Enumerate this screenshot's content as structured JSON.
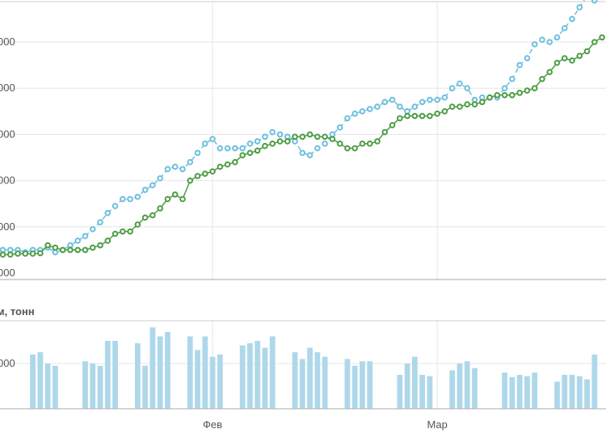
{
  "chart_data": [
    {
      "type": "line",
      "title": "",
      "xlabel": "",
      "ylabel": "",
      "x": [
        1,
        2,
        3,
        4,
        5,
        6,
        7,
        8,
        9,
        10,
        11,
        12,
        13,
        14,
        15,
        16,
        17,
        18,
        19,
        20,
        21,
        22,
        23,
        24,
        25,
        26,
        27,
        28,
        29,
        30,
        31,
        32,
        33,
        34,
        35,
        36,
        37,
        38,
        39,
        40,
        41,
        42,
        43,
        44,
        45,
        46,
        47,
        48,
        49,
        50,
        51,
        52,
        53,
        54,
        55,
        56,
        57,
        58,
        59,
        60,
        61,
        62,
        63,
        64,
        65,
        66,
        67,
        68,
        69,
        70,
        71,
        72,
        73,
        74,
        75,
        76,
        77,
        78,
        79,
        80,
        81
      ],
      "x_ticks": [
        {
          "x": 29,
          "label": "Фев"
        },
        {
          "x": 59,
          "label": "Мар"
        }
      ],
      "y_tick_labels": [
        "000",
        "000",
        "000",
        "000",
        "000",
        "000"
      ],
      "ylim": [
        0,
        6
      ],
      "y_ticks": [
        0,
        1,
        2,
        3,
        4,
        5
      ],
      "grid": true,
      "series": [
        {
          "color": "#6cbfe0",
          "style": "dashed",
          "values": [
            0.5,
            0.5,
            0.5,
            0.45,
            0.5,
            0.5,
            0.55,
            0.45,
            0.5,
            0.6,
            0.7,
            0.8,
            0.95,
            1.1,
            1.3,
            1.45,
            1.6,
            1.6,
            1.65,
            1.8,
            1.9,
            2.05,
            2.25,
            2.3,
            2.25,
            2.4,
            2.6,
            2.8,
            2.9,
            2.7,
            2.7,
            2.7,
            2.7,
            2.8,
            2.85,
            2.95,
            3.05,
            3.0,
            2.95,
            2.85,
            2.6,
            2.55,
            2.7,
            2.8,
            3.0,
            3.15,
            3.35,
            3.45,
            3.5,
            3.55,
            3.6,
            3.7,
            3.75,
            3.6,
            3.5,
            3.6,
            3.7,
            3.75,
            3.75,
            3.8,
            4.0,
            4.1,
            4.0,
            3.75,
            3.8,
            3.8,
            3.8,
            4.0,
            4.2,
            4.5,
            4.65,
            4.95,
            5.05,
            5.0,
            5.1,
            5.3,
            5.5,
            5.75,
            6.0,
            5.9,
            6.0
          ]
        },
        {
          "color": "#4c9c43",
          "style": "solid",
          "values": [
            0.4,
            0.4,
            0.42,
            0.42,
            0.42,
            0.43,
            0.6,
            0.55,
            0.5,
            0.5,
            0.5,
            0.5,
            0.55,
            0.6,
            0.7,
            0.85,
            0.9,
            0.9,
            1.05,
            1.2,
            1.25,
            1.4,
            1.6,
            1.7,
            1.6,
            2.0,
            2.1,
            2.15,
            2.2,
            2.3,
            2.35,
            2.4,
            2.55,
            2.6,
            2.65,
            2.75,
            2.8,
            2.85,
            2.85,
            2.95,
            2.95,
            3.0,
            2.95,
            2.95,
            2.9,
            2.8,
            2.7,
            2.7,
            2.8,
            2.8,
            2.85,
            3.05,
            3.2,
            3.35,
            3.4,
            3.4,
            3.4,
            3.4,
            3.45,
            3.5,
            3.6,
            3.6,
            3.65,
            3.65,
            3.7,
            3.8,
            3.85,
            3.85,
            3.85,
            3.9,
            3.95,
            4.0,
            4.2,
            4.35,
            4.55,
            4.65,
            4.6,
            4.7,
            4.8,
            5.0,
            5.1
          ]
        }
      ]
    },
    {
      "type": "bar",
      "title": "м, тонн",
      "y_tick_labels": [
        "000"
      ],
      "ylim": [
        0,
        2
      ],
      "x_ticks": [
        {
          "x": 29,
          "label": "Фев"
        },
        {
          "x": 59,
          "label": "Мар"
        }
      ],
      "color": "#aed8ea",
      "bars": [
        {
          "x": 5,
          "value": 1.2
        },
        {
          "x": 6,
          "value": 1.25
        },
        {
          "x": 7,
          "value": 1.0
        },
        {
          "x": 8,
          "value": 0.95
        },
        {
          "x": 12,
          "value": 1.05
        },
        {
          "x": 13,
          "value": 1.0
        },
        {
          "x": 14,
          "value": 0.95
        },
        {
          "x": 15,
          "value": 1.5
        },
        {
          "x": 16,
          "value": 1.5
        },
        {
          "x": 19,
          "value": 1.45
        },
        {
          "x": 20,
          "value": 0.95
        },
        {
          "x": 21,
          "value": 1.8
        },
        {
          "x": 22,
          "value": 1.6
        },
        {
          "x": 23,
          "value": 1.7
        },
        {
          "x": 26,
          "value": 1.6
        },
        {
          "x": 27,
          "value": 1.3
        },
        {
          "x": 28,
          "value": 1.6
        },
        {
          "x": 29,
          "value": 1.15
        },
        {
          "x": 30,
          "value": 1.2
        },
        {
          "x": 33,
          "value": 1.4
        },
        {
          "x": 34,
          "value": 1.45
        },
        {
          "x": 35,
          "value": 1.5
        },
        {
          "x": 36,
          "value": 1.35
        },
        {
          "x": 37,
          "value": 1.6
        },
        {
          "x": 40,
          "value": 1.25
        },
        {
          "x": 41,
          "value": 1.1
        },
        {
          "x": 42,
          "value": 1.35
        },
        {
          "x": 43,
          "value": 1.25
        },
        {
          "x": 44,
          "value": 1.15
        },
        {
          "x": 47,
          "value": 1.1
        },
        {
          "x": 48,
          "value": 0.95
        },
        {
          "x": 49,
          "value": 1.05
        },
        {
          "x": 50,
          "value": 1.05
        },
        {
          "x": 54,
          "value": 0.75
        },
        {
          "x": 55,
          "value": 1.0
        },
        {
          "x": 56,
          "value": 1.15
        },
        {
          "x": 57,
          "value": 0.75
        },
        {
          "x": 58,
          "value": 0.72
        },
        {
          "x": 61,
          "value": 0.85
        },
        {
          "x": 62,
          "value": 1.0
        },
        {
          "x": 63,
          "value": 1.05
        },
        {
          "x": 64,
          "value": 0.9
        },
        {
          "x": 68,
          "value": 0.8
        },
        {
          "x": 69,
          "value": 0.7
        },
        {
          "x": 70,
          "value": 0.75
        },
        {
          "x": 71,
          "value": 0.72
        },
        {
          "x": 72,
          "value": 0.8
        },
        {
          "x": 75,
          "value": 0.6
        },
        {
          "x": 76,
          "value": 0.75
        },
        {
          "x": 77,
          "value": 0.75
        },
        {
          "x": 78,
          "value": 0.72
        },
        {
          "x": 79,
          "value": 0.65
        },
        {
          "x": 80,
          "value": 1.2
        }
      ]
    }
  ]
}
